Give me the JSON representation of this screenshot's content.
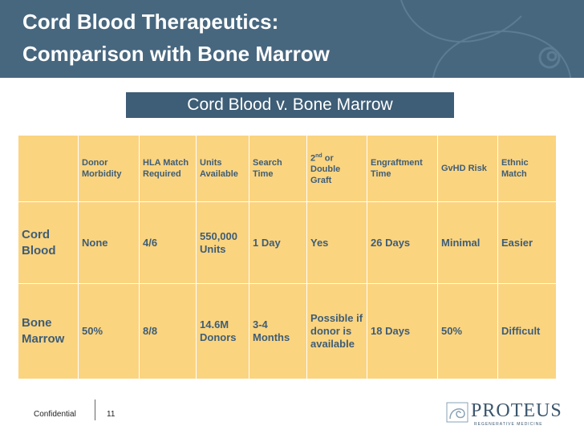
{
  "slide": {
    "title_line1": "Cord Blood Therapeutics:",
    "title_line2": "Comparison with Bone Marrow",
    "subtitle": "Cord Blood v. Bone Marrow"
  },
  "table": {
    "headers": [
      "",
      "Donor Morbidity",
      "HLA Match Required",
      "Units Available",
      "Search Time",
      "2nd or Double Graft",
      "Engraftment Time",
      "GvHD Risk",
      "Ethnic Match"
    ],
    "header_double_graft": {
      "prefix": "2",
      "sup": "nd",
      "suffix": " or Double Graft"
    },
    "rows": [
      {
        "label": "Cord Blood",
        "cells": [
          "None",
          "4/6",
          "550,000 Units",
          "1 Day",
          "Yes",
          "26 Days",
          "Minimal",
          "Easier"
        ]
      },
      {
        "label": "Bone Marrow",
        "cells": [
          "50%",
          "8/8",
          "14.6M Donors",
          "3-4 Months",
          "Possible if donor is available",
          "18 Days",
          "50%",
          "Difficult"
        ]
      }
    ]
  },
  "footer": {
    "confidential": "Confidential",
    "page_number": "11"
  },
  "logo": {
    "name": "PROTEUS",
    "tagline": "REGENERATIVE MEDICINE"
  },
  "colors": {
    "header_bg": "#47677f",
    "subtitle_bg": "#3e5d76",
    "table_bg": "#fbd480",
    "table_text": "#3e5d76"
  }
}
